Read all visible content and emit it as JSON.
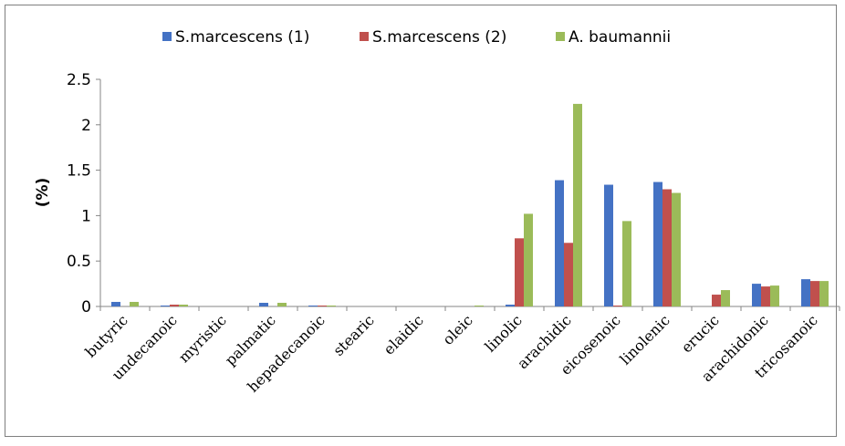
{
  "chart_data": {
    "type": "bar",
    "title": "",
    "xlabel": "",
    "ylabel": "(%)",
    "ylim": [
      0,
      2.5
    ],
    "yticks": [
      "0",
      "0.5",
      "1",
      "1.5",
      "2",
      "2.5"
    ],
    "grid": false,
    "legend_position": "top",
    "categories": [
      "butyric",
      "undecanoic",
      "myristic",
      "palmatic",
      "hepadecanoic",
      "stearic",
      "elaidic",
      "oleic",
      "linolic",
      "arachidic",
      "eicosenoic",
      "linolenic",
      "erucic",
      "arachidonic",
      "tricosanoic"
    ],
    "series": [
      {
        "name": "S.marcescens (1)",
        "color": "#4472C4",
        "values": [
          0.05,
          0.01,
          0.0,
          0.04,
          0.01,
          0.0,
          0.0,
          0.0,
          0.02,
          1.39,
          1.34,
          1.37,
          0.0,
          0.25,
          0.3
        ]
      },
      {
        "name": "S.marcescens (2)",
        "color": "#C0504D",
        "values": [
          0.0,
          0.02,
          0.0,
          0.0,
          0.01,
          0.0,
          0.0,
          0.0,
          0.75,
          0.7,
          0.01,
          1.29,
          0.13,
          0.22,
          0.28
        ]
      },
      {
        "name": "A. baumannii",
        "color": "#9BBB59",
        "values": [
          0.05,
          0.02,
          0.0,
          0.04,
          0.01,
          0.0,
          0.0,
          0.01,
          1.02,
          2.23,
          0.94,
          1.25,
          0.18,
          0.23,
          0.28
        ]
      }
    ]
  }
}
